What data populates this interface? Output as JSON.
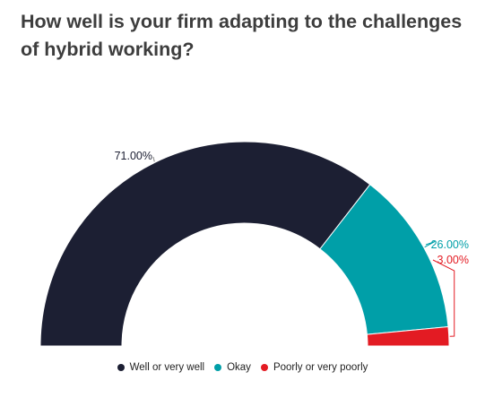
{
  "chart_data": {
    "type": "pie",
    "subtype": "semi-donut",
    "title": "How well is your firm adapting to the challenges of hybrid working?",
    "categories": [
      "Well or very well",
      "Okay",
      "Poorly or very poorly"
    ],
    "values": [
      71.0,
      26.0,
      3.0
    ],
    "data_labels": [
      "71.00%",
      "26.00%",
      "3.00%"
    ],
    "colors": [
      "#1c1f33",
      "#009fa8",
      "#e31b23"
    ],
    "legend_position": "bottom-center"
  }
}
